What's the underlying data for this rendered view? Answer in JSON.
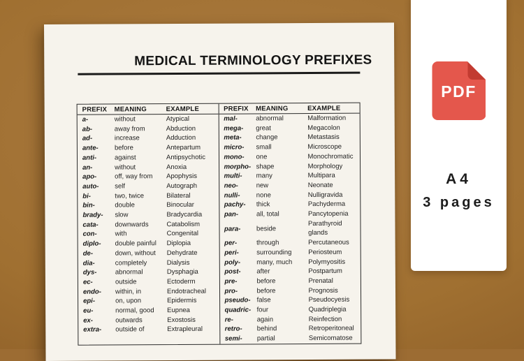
{
  "document": {
    "title": "MEDICAL TERMINOLOGY PREFIXES"
  },
  "table": {
    "headers": [
      "PREFIX",
      "MEANING",
      "EXAMPLE"
    ],
    "left_rows": [
      {
        "prefix": "a-",
        "meaning": "without",
        "example": "Atypical"
      },
      {
        "prefix": "ab-",
        "meaning": "away from",
        "example": "Abduction"
      },
      {
        "prefix": "ad-",
        "meaning": "increase",
        "example": "Adduction"
      },
      {
        "prefix": "ante-",
        "meaning": "before",
        "example": "Antepartum"
      },
      {
        "prefix": "anti-",
        "meaning": "against",
        "example": "Antipsychotic"
      },
      {
        "prefix": "an-",
        "meaning": "without",
        "example": "Anoxia"
      },
      {
        "prefix": "apo-",
        "meaning": "off, way from",
        "example": "Apophysis"
      },
      {
        "prefix": "auto-",
        "meaning": "self",
        "example": "Autograph"
      },
      {
        "prefix": "bi-",
        "meaning": "two, twice",
        "example": "Bilateral"
      },
      {
        "prefix": "bin-",
        "meaning": "double",
        "example": "Binocular"
      },
      {
        "prefix": "brady-",
        "meaning": "slow",
        "example": "Bradycardia"
      },
      {
        "prefix": "cata-",
        "meaning": "downwards",
        "example": "Catabolism"
      },
      {
        "prefix": "con-",
        "meaning": "with",
        "example": "Congenital"
      },
      {
        "prefix": "diplo-",
        "meaning": "double painful",
        "example": "Diplopia"
      },
      {
        "prefix": "de-",
        "meaning": "down, without",
        "example": "Dehydrate"
      },
      {
        "prefix": "dia-",
        "meaning": "completely",
        "example": "Dialysis"
      },
      {
        "prefix": "dys-",
        "meaning": "abnormal",
        "example": "Dysphagia"
      },
      {
        "prefix": "ec-",
        "meaning": "outside",
        "example": "Ectoderm"
      },
      {
        "prefix": "endo-",
        "meaning": "within, in",
        "example": "Endotracheal"
      },
      {
        "prefix": "epi-",
        "meaning": "on, upon",
        "example": "Epidermis"
      },
      {
        "prefix": "eu-",
        "meaning": "normal, good",
        "example": "Eupnea"
      },
      {
        "prefix": "ex-",
        "meaning": "outwards",
        "example": "Exostosis"
      },
      {
        "prefix": "extra-",
        "meaning": "outside of",
        "example": "Extrapleural"
      }
    ],
    "right_rows": [
      {
        "prefix": "mal-",
        "meaning": "abnormal",
        "example": "Malformation"
      },
      {
        "prefix": "mega-",
        "meaning": "great",
        "example": "Megacolon"
      },
      {
        "prefix": "meta-",
        "meaning": "change",
        "example": "Metastasis"
      },
      {
        "prefix": "micro-",
        "meaning": "small",
        "example": "Microscope"
      },
      {
        "prefix": "mono-",
        "meaning": "one",
        "example": "Monochromatic"
      },
      {
        "prefix": "morpho-",
        "meaning": "shape",
        "example": "Morphology"
      },
      {
        "prefix": "multi-",
        "meaning": "many",
        "example": "Multipara"
      },
      {
        "prefix": "neo-",
        "meaning": "new",
        "example": "Neonate"
      },
      {
        "prefix": "nulli-",
        "meaning": "none",
        "example": "Nulligravida"
      },
      {
        "prefix": "pachy-",
        "meaning": "thick",
        "example": "Pachyderma"
      },
      {
        "prefix": "pan-",
        "meaning": "all, total",
        "example": "Pancytopenia"
      },
      {
        "prefix": "para-",
        "meaning": "beside",
        "example": "Parathyroid glands"
      },
      {
        "prefix": "per-",
        "meaning": "through",
        "example": "Percutaneous"
      },
      {
        "prefix": "peri-",
        "meaning": "surrounding",
        "example": "Periosteum"
      },
      {
        "prefix": "poly-",
        "meaning": "many, much",
        "example": "Polymyositis"
      },
      {
        "prefix": "post-",
        "meaning": "after",
        "example": "Postpartum"
      },
      {
        "prefix": "pre-",
        "meaning": "before",
        "example": "Prenatal"
      },
      {
        "prefix": "pro-",
        "meaning": "before",
        "example": "Prognosis"
      },
      {
        "prefix": "pseudo-",
        "meaning": "false",
        "example": "Pseudocyesis"
      },
      {
        "prefix": "quadric-",
        "meaning": "four",
        "example": "Quadriplegia"
      },
      {
        "prefix": "re-",
        "meaning": "again",
        "example": "Reinfection"
      },
      {
        "prefix": "retro-",
        "meaning": "behind",
        "example": "Retroperitoneal"
      },
      {
        "prefix": "semi-",
        "meaning": "partial",
        "example": "Semicomatose"
      }
    ]
  },
  "side_panel": {
    "pdf_icon_label": "PDF",
    "format": "A4",
    "pages": "3 pages"
  },
  "colors": {
    "background_brown": "#9c6c33",
    "paper": "#f6f3ec",
    "pdf_red": "#e4574c",
    "pdf_fold_red": "#c23b31",
    "text": "#1c1c1c"
  }
}
